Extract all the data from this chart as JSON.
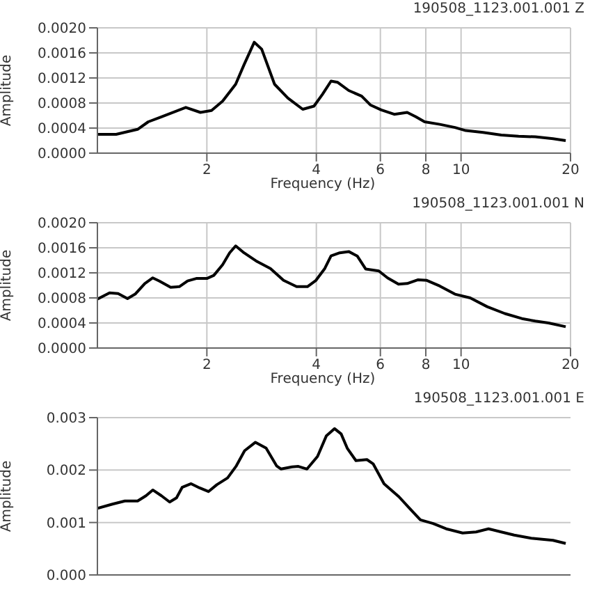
{
  "chart_data": [
    {
      "type": "line",
      "title": "190508_1123.001.001 Z",
      "xlabel": "Frequency (Hz)",
      "ylabel": "Amplitude",
      "xlim": [
        1,
        20
      ],
      "xticks": [
        2,
        4,
        6,
        8,
        10,
        20
      ],
      "ylim": [
        0,
        0.002
      ],
      "yticks": [
        {
          "value": 0,
          "label": "0.0000"
        },
        0.0004,
        0.0008,
        0.0012,
        0.0016,
        {
          "value": 0.002,
          "label": "0.0020"
        }
      ],
      "log": "x",
      "grid": true,
      "marker": "none",
      "series": [
        {
          "color": "#000000",
          "x": [
            1.0,
            1.126,
            1.29,
            1.38,
            1.5,
            1.75,
            1.92,
            2.06,
            2.21,
            2.4,
            2.53,
            2.7,
            2.83,
            3.07,
            3.34,
            3.67,
            3.94,
            4.16,
            4.39,
            4.58,
            4.91,
            5.33,
            5.63,
            6.03,
            6.55,
            7.11,
            7.51,
            7.94,
            8.74,
            9.62,
            10.3,
            11.5,
            12.9,
            14.4,
            16.0,
            17.9,
            19.4
          ],
          "values": [
            0.0003,
            0.0003,
            0.00038,
            0.0005,
            0.00058,
            0.00073,
            0.00065,
            0.00068,
            0.00083,
            0.0011,
            0.00141,
            0.00177,
            0.00166,
            0.0011,
            0.00088,
            0.0007,
            0.00075,
            0.00094,
            0.00115,
            0.00113,
            0.001,
            0.00091,
            0.00077,
            0.00069,
            0.00062,
            0.00065,
            0.00058,
            0.0005,
            0.00046,
            0.00041,
            0.00036,
            0.00033,
            0.00029,
            0.00027,
            0.00026,
            0.00023,
            0.0002
          ]
        }
      ]
    },
    {
      "type": "line",
      "title": "190508_1123.001.001 N",
      "xlabel": "Frequency (Hz)",
      "ylabel": "Amplitude",
      "xlim": [
        1,
        20
      ],
      "xticks": [
        2,
        4,
        6,
        8,
        10,
        20
      ],
      "ylim": [
        0,
        0.002
      ],
      "yticks": [
        {
          "value": 0,
          "label": "0.0000"
        },
        0.0004,
        0.0008,
        0.0012,
        0.0016,
        {
          "value": 0.002,
          "label": "0.0020"
        }
      ],
      "log": "x",
      "grid": true,
      "marker": "none",
      "series": [
        {
          "color": "#000000",
          "x": [
            1.0,
            1.08,
            1.14,
            1.21,
            1.27,
            1.35,
            1.42,
            1.48,
            1.59,
            1.68,
            1.77,
            1.87,
            2.0,
            2.09,
            2.21,
            2.31,
            2.4,
            2.53,
            2.75,
            2.99,
            3.25,
            3.53,
            3.78,
            3.99,
            4.22,
            4.39,
            4.64,
            4.91,
            5.18,
            5.47,
            5.94,
            6.28,
            6.73,
            7.11,
            7.62,
            8.05,
            8.74,
            9.62,
            10.6,
            11.8,
            13.2,
            14.7,
            16.0,
            17.4,
            19.4
          ],
          "values": [
            0.00078,
            0.00088,
            0.00087,
            0.00079,
            0.00086,
            0.00103,
            0.00112,
            0.00107,
            0.00097,
            0.00098,
            0.00107,
            0.00111,
            0.00111,
            0.00116,
            0.00133,
            0.00152,
            0.00163,
            0.00152,
            0.00138,
            0.00127,
            0.00108,
            0.00098,
            0.00098,
            0.00108,
            0.00127,
            0.00147,
            0.00152,
            0.00154,
            0.00147,
            0.00126,
            0.00123,
            0.00112,
            0.00102,
            0.00103,
            0.00109,
            0.00108,
            0.00099,
            0.00086,
            0.0008,
            0.00066,
            0.00055,
            0.00047,
            0.00043,
            0.0004,
            0.00034
          ]
        }
      ]
    },
    {
      "type": "line",
      "title": "190508_1123.001.001 E",
      "ylabel": "Amplitude",
      "xlim": [
        1,
        20
      ],
      "xticks": [
        2,
        4,
        6,
        8,
        10,
        20
      ],
      "ylim": [
        0,
        0.003
      ],
      "yticks": [
        {
          "value": 0,
          "label": "0.000"
        },
        0.001,
        0.002,
        {
          "value": 0.003,
          "label": "0.003"
        }
      ],
      "log": "x",
      "grid": true,
      "marker": "none",
      "tick_labels": "y",
      "series": [
        {
          "color": "#000000",
          "x": [
            1.0,
            1.1,
            1.19,
            1.29,
            1.36,
            1.42,
            1.5,
            1.58,
            1.65,
            1.71,
            1.81,
            1.91,
            2.02,
            2.13,
            2.28,
            2.41,
            2.54,
            2.72,
            2.91,
            3.11,
            3.2,
            3.43,
            3.57,
            3.77,
            4.03,
            4.26,
            4.49,
            4.68,
            4.87,
            5.14,
            5.51,
            5.73,
            6.14,
            6.75,
            7.22,
            7.73,
            8.38,
            9.1,
            10.1,
            11.0,
            11.9,
            12.9,
            14.0,
            15.6,
            17.9,
            19.4
          ],
          "values": [
            0.00127,
            0.00135,
            0.00141,
            0.00141,
            0.00151,
            0.00162,
            0.00151,
            0.00139,
            0.00147,
            0.00167,
            0.00174,
            0.00166,
            0.00159,
            0.00172,
            0.00185,
            0.00208,
            0.00237,
            0.00253,
            0.00242,
            0.00208,
            0.00202,
            0.00206,
            0.00207,
            0.00202,
            0.00226,
            0.00265,
            0.00279,
            0.00269,
            0.00241,
            0.00218,
            0.0022,
            0.00212,
            0.00174,
            0.00149,
            0.00127,
            0.00105,
            0.00098,
            0.00088,
            0.0008,
            0.00082,
            0.00088,
            0.00082,
            0.00076,
            0.0007,
            0.00066,
            0.0006
          ]
        }
      ]
    }
  ]
}
